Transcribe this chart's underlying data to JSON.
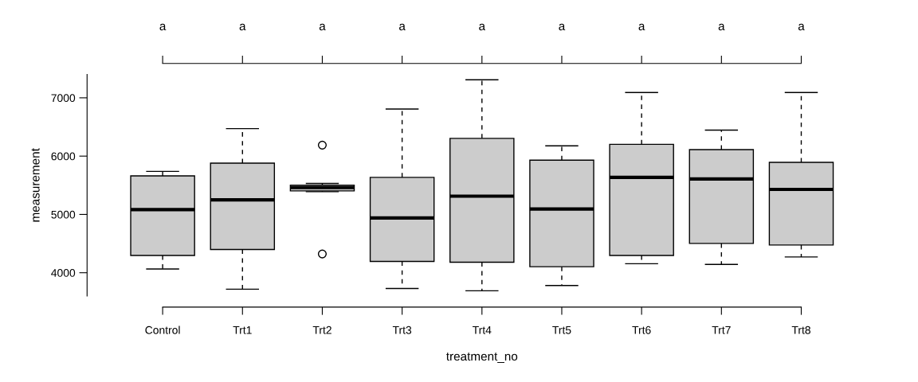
{
  "chart_data": {
    "type": "box",
    "xlabel": "treatment_no",
    "ylabel": "measurement",
    "categories": [
      "Control",
      "Trt1",
      "Trt2",
      "Trt3",
      "Trt4",
      "Trt5",
      "Trt6",
      "Trt7",
      "Trt8"
    ],
    "boxes": [
      {
        "low": 4064,
        "q1": 4296,
        "median": 5082,
        "q3": 5661,
        "high": 5738
      },
      {
        "low": 3717,
        "q1": 4399,
        "median": 5249,
        "q3": 5880,
        "high": 6472
      },
      {
        "low": 5390,
        "q1": 5403,
        "median": 5460,
        "q3": 5500,
        "high": 5532,
        "outliers": [
          6189,
          4322
        ]
      },
      {
        "low": 3730,
        "q1": 4193,
        "median": 4940,
        "q3": 5635,
        "high": 6807
      },
      {
        "low": 3691,
        "q1": 4180,
        "median": 5313,
        "q3": 6305,
        "high": 7309
      },
      {
        "low": 3781,
        "q1": 4103,
        "median": 5094,
        "q3": 5931,
        "high": 6176
      },
      {
        "low": 4155,
        "q1": 4296,
        "median": 5635,
        "q3": 6202,
        "high": 7090
      },
      {
        "low": 4142,
        "q1": 4502,
        "median": 5609,
        "q3": 6112,
        "high": 6446
      },
      {
        "low": 4270,
        "q1": 4476,
        "median": 5429,
        "q3": 5893,
        "high": 7090
      }
    ],
    "color": "#cccccc",
    "ylim": [
      3600,
      7400
    ],
    "yticks": [
      4000,
      5000,
      6000,
      7000
    ],
    "grid": false,
    "annotations": [
      "a",
      "a",
      "a",
      "a",
      "a",
      "a",
      "a",
      "a",
      "a"
    ]
  }
}
